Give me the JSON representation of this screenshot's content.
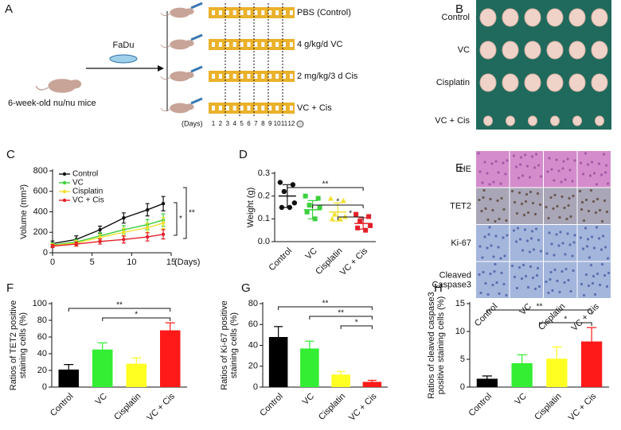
{
  "panel_a": {
    "label": "A",
    "cell_line": "FaDu",
    "mice": "6-week-old nu/nu mice",
    "groups": [
      "PBS (Control)",
      "4 g/kg/d VC",
      "2 mg/kg/3 d Cis",
      "VC + Cis"
    ],
    "days_label": "(Days)",
    "days": [
      1,
      2,
      3,
      4,
      5,
      6,
      7,
      8,
      9,
      10,
      11,
      12
    ]
  },
  "panel_b": {
    "label": "B",
    "rows": [
      "Control",
      "VC",
      "Cisplatin",
      "VC + Cis"
    ]
  },
  "panel_e": {
    "label": "E",
    "rows": [
      [
        "HE"
      ],
      [
        "TET2"
      ],
      [
        "Ki-67"
      ],
      [
        "Cleaved",
        "Caspase3"
      ]
    ],
    "columns": [
      "Control",
      "VC",
      "Cisplatin",
      "VC + Cis"
    ]
  },
  "chart_data": [
    {
      "type": "line",
      "panel": "C",
      "ylabel": "Volume (mm³)",
      "xlabel": "(Days)",
      "x": [
        0,
        3,
        6,
        9,
        12,
        14
      ],
      "xlim": [
        0,
        15
      ],
      "xticks": [
        0,
        5,
        10,
        15
      ],
      "ylim": [
        0,
        800
      ],
      "yticks": [
        0,
        200,
        400,
        600,
        800
      ],
      "legend": "upper left",
      "series": [
        {
          "name": "Control",
          "color": "#111111",
          "values": [
            90,
            130,
            225,
            340,
            420,
            480
          ],
          "errors": [
            25,
            35,
            35,
            50,
            60,
            70
          ]
        },
        {
          "name": "VC",
          "color": "#3ccf3c",
          "values": [
            75,
            105,
            165,
            225,
            275,
            320
          ],
          "errors": [
            20,
            25,
            30,
            40,
            50,
            60
          ]
        },
        {
          "name": "Cisplatin",
          "color": "#f0e030",
          "values": [
            70,
            95,
            150,
            200,
            245,
            290
          ],
          "errors": [
            18,
            25,
            30,
            40,
            45,
            55
          ]
        },
        {
          "name": "VC + Cis",
          "color": "#e3202a",
          "values": [
            65,
            85,
            110,
            130,
            155,
            180
          ],
          "errors": [
            15,
            20,
            25,
            35,
            40,
            45
          ]
        }
      ],
      "significance": [
        "*",
        "**"
      ]
    },
    {
      "type": "dot",
      "panel": "D",
      "ylabel": "Weight (g)",
      "categories": [
        "Control",
        "VC",
        "Cisplatin",
        "VC + Cis"
      ],
      "colors": [
        "#111111",
        "#3ccf3c",
        "#f0e030",
        "#e3202a"
      ],
      "points": [
        [
          0.26,
          0.25,
          0.22,
          0.17,
          0.15,
          0.15
        ],
        [
          0.2,
          0.19,
          0.16,
          0.15,
          0.13,
          0.1
        ],
        [
          0.19,
          0.18,
          0.12,
          0.11,
          0.1,
          0.1
        ],
        [
          0.12,
          0.11,
          0.09,
          0.07,
          0.06,
          0.05
        ]
      ],
      "means": [
        0.2,
        0.14,
        0.13,
        0.08
      ],
      "sds": [
        0.05,
        0.04,
        0.04,
        0.025
      ],
      "ylim": [
        0,
        0.3
      ],
      "yticks": [
        {
          "value": 0,
          "label": "0.0"
        },
        0.1,
        0.2,
        0.3
      ],
      "significance": [
        "**",
        "*",
        "*"
      ]
    },
    {
      "type": "bar",
      "panel": "F",
      "ylabel": [
        "Ratios of TET2 positive",
        "staining cells (%)"
      ],
      "categories": [
        "Control",
        "VC",
        "Cisplatin",
        "VC + Cis"
      ],
      "colors": [
        "#000000",
        "#33ee33",
        "#ffff22",
        "#ff1a1a"
      ],
      "values": [
        21,
        45,
        28,
        68
      ],
      "errors": [
        6,
        8,
        7,
        9
      ],
      "ylim": [
        0,
        100
      ],
      "yticks": [
        0,
        20,
        40,
        60,
        80,
        100
      ],
      "significance": [
        "**",
        "*"
      ]
    },
    {
      "type": "bar",
      "panel": "G",
      "ylabel": [
        "Ratios of Ki-67 positive",
        "staining cells (%)"
      ],
      "categories": [
        "Control",
        "VC",
        "Cisplatin",
        "VC + Cis"
      ],
      "colors": [
        "#000000",
        "#33ee33",
        "#ffff22",
        "#ff1a1a"
      ],
      "values": [
        48,
        37,
        12,
        5
      ],
      "errors": [
        10,
        7,
        3,
        1.5
      ],
      "ylim": [
        0,
        80
      ],
      "yticks": [
        0,
        20,
        40,
        60,
        80
      ],
      "significance": [
        "**",
        "**",
        "*"
      ]
    },
    {
      "type": "bar",
      "panel": "H",
      "ylabel": [
        "Ratios of cleaved caspase3",
        "positive staining cells (%)"
      ],
      "categories": [
        "Control",
        "VC",
        "Cisplatin",
        "VC + Cis"
      ],
      "colors": [
        "#000000",
        "#33ee33",
        "#ffff22",
        "#ff1a1a"
      ],
      "values": [
        1.5,
        4.3,
        5.1,
        8.2
      ],
      "errors": [
        0.5,
        1.5,
        2.1,
        2.5
      ],
      "ylim": [
        0,
        15
      ],
      "yticks": [
        0,
        5,
        10,
        15
      ],
      "significance": [
        "**",
        "*"
      ]
    }
  ]
}
